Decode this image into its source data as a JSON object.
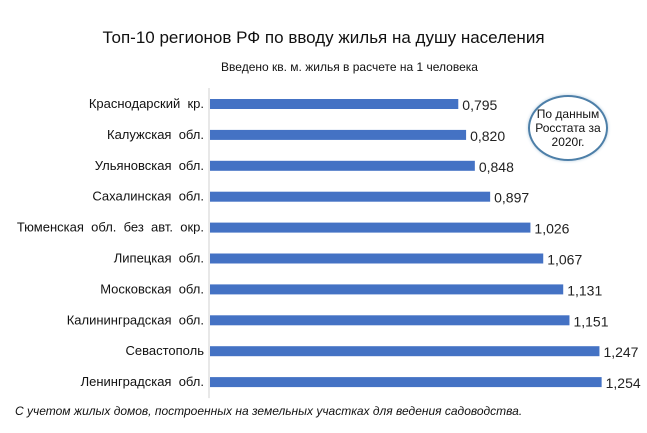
{
  "header": {
    "title": "Топ-10 регионов РФ по вводу жилья на душу населения",
    "subtitle": "Введено кв. м. жилья в расчете на 1 человека"
  },
  "badge": {
    "text": "По данным Росстата за 2020г."
  },
  "footnote": "С учетом жилых домов, построенных на земельных участках для ведения садоводства.",
  "chart_data": {
    "type": "bar",
    "orientation": "horizontal",
    "title": "Топ-10 регионов РФ по вводу жилья на душу населения",
    "subtitle": "Введено кв. м. жилья в расчете на 1 человека",
    "categories": [
      "Краснодарский  кр.",
      "Калужская  обл.",
      "Ульяновская  обл.",
      "Сахалинская  обл.",
      "Тюменская  обл.  без  авт.  окр.",
      "Липецкая  обл.",
      "Московская  обл.",
      "Калининградская  обл.",
      "Севастополь",
      "Ленинградская  обл."
    ],
    "values": [
      0.795,
      0.82,
      0.848,
      0.897,
      1.026,
      1.067,
      1.131,
      1.151,
      1.247,
      1.254
    ],
    "value_labels": [
      "0,795",
      "0,820",
      "0,848",
      "0,897",
      "1,026",
      "1,067",
      "1,131",
      "1,151",
      "1,247",
      "1,254"
    ],
    "xlim": [
      0,
      1.3
    ],
    "grid": false,
    "legend": "none",
    "bar_color": "#4472c4"
  }
}
